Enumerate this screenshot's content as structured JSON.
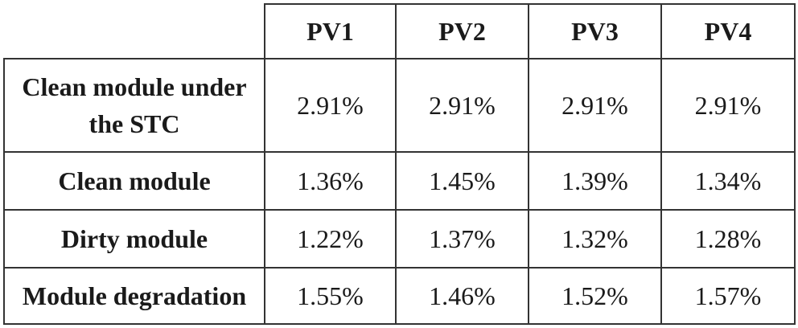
{
  "table": {
    "columns": [
      "PV1",
      "PV2",
      "PV3",
      "PV4"
    ],
    "rows": [
      {
        "label": "Clean module under the STC",
        "values": [
          "2.91%",
          "2.91%",
          "2.91%",
          "2.91%"
        ]
      },
      {
        "label": "Clean module",
        "values": [
          "1.36%",
          "1.45%",
          "1.39%",
          "1.34%"
        ]
      },
      {
        "label": "Dirty module",
        "values": [
          "1.22%",
          "1.37%",
          "1.32%",
          "1.28%"
        ]
      },
      {
        "label": "Module degradation",
        "values": [
          "1.55%",
          "1.46%",
          "1.52%",
          "1.57%"
        ]
      }
    ]
  }
}
